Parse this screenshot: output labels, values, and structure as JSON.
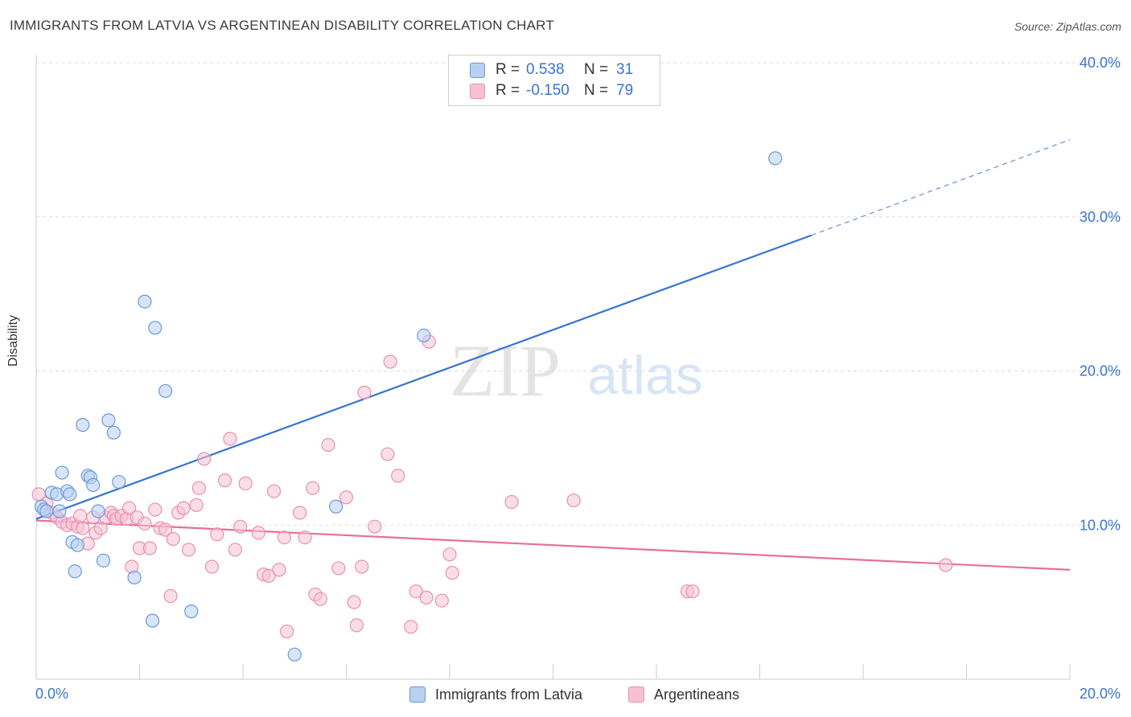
{
  "header": {
    "title": "IMMIGRANTS FROM LATVIA VS ARGENTINEAN DISABILITY CORRELATION CHART",
    "source": "Source: ZipAtlas.com"
  },
  "colors": {
    "blue": "#3a74d0",
    "blue_fill": "#b8d0f2",
    "blue_stroke": "#6b9ad8",
    "pink": "#e86f9a",
    "pink_fill": "#f6c2d3",
    "pink_stroke": "#e98fb0",
    "grid": "#dddddd",
    "tick_label": "#3a74d0"
  },
  "legend": {
    "rows": [
      {
        "r_label": "R =",
        "r_value": "0.538",
        "n_label": "N =",
        "n_value": "31"
      },
      {
        "r_label": "R =",
        "r_value": "-0.150",
        "n_label": "N =",
        "n_value": "79"
      }
    ]
  },
  "watermark": {
    "zip": "ZIP",
    "atlas": "atlas"
  },
  "chart_data": {
    "type": "scatter",
    "title": "IMMIGRANTS FROM LATVIA VS ARGENTINEAN DISABILITY CORRELATION CHART",
    "xlabel": "",
    "ylabel": "Disability",
    "xlim": [
      0,
      20
    ],
    "ylim": [
      0,
      40
    ],
    "x_ticks": [
      0,
      2,
      4,
      6,
      8,
      10,
      12,
      14,
      16,
      18,
      20
    ],
    "x_tick_labels": {
      "0": "0.0%",
      "20": "20.0%"
    },
    "y_ticks": [
      10,
      20,
      30,
      40
    ],
    "y_tick_labels": [
      "10.0%",
      "20.0%",
      "30.0%",
      "40.0%"
    ],
    "grid": true,
    "legend_position": "top-center",
    "series": [
      {
        "name": "Immigrants from Latvia",
        "color": "#3a74d0",
        "r": 0.538,
        "n": 31,
        "trend": {
          "x0": 0.0,
          "y0": 10.4,
          "x1": 15.0,
          "y1": 28.8,
          "dashed_to_x": 20.0,
          "dashed_to_y": 35.0
        },
        "points": [
          [
            0.1,
            11.2
          ],
          [
            0.15,
            11.0
          ],
          [
            0.2,
            10.9
          ],
          [
            0.3,
            12.1
          ],
          [
            0.4,
            12.0
          ],
          [
            0.45,
            10.9
          ],
          [
            0.5,
            13.4
          ],
          [
            0.6,
            12.2
          ],
          [
            0.65,
            12.0
          ],
          [
            0.7,
            8.9
          ],
          [
            0.75,
            7.0
          ],
          [
            0.8,
            8.7
          ],
          [
            0.9,
            16.5
          ],
          [
            1.0,
            13.2
          ],
          [
            1.05,
            13.1
          ],
          [
            1.1,
            12.6
          ],
          [
            1.2,
            10.9
          ],
          [
            1.3,
            7.7
          ],
          [
            1.4,
            16.8
          ],
          [
            1.5,
            16.0
          ],
          [
            1.6,
            12.8
          ],
          [
            1.9,
            6.6
          ],
          [
            2.1,
            24.5
          ],
          [
            2.3,
            22.8
          ],
          [
            2.25,
            3.8
          ],
          [
            2.5,
            18.7
          ],
          [
            3.0,
            4.4
          ],
          [
            5.0,
            1.6
          ],
          [
            5.8,
            11.2
          ],
          [
            7.5,
            22.3
          ],
          [
            14.3,
            33.8
          ]
        ]
      },
      {
        "name": "Argentineans",
        "color": "#e86f9a",
        "r": -0.15,
        "n": 79,
        "trend": {
          "x0": 0.0,
          "y0": 10.3,
          "x1": 20.0,
          "y1": 7.1
        },
        "points": [
          [
            0.05,
            12.0
          ],
          [
            0.2,
            11.4
          ],
          [
            0.3,
            10.8
          ],
          [
            0.4,
            10.5
          ],
          [
            0.5,
            10.2
          ],
          [
            0.6,
            10.0
          ],
          [
            0.7,
            10.1
          ],
          [
            0.8,
            9.9
          ],
          [
            0.85,
            10.6
          ],
          [
            0.9,
            9.8
          ],
          [
            1.0,
            8.8
          ],
          [
            1.1,
            10.5
          ],
          [
            1.15,
            9.5
          ],
          [
            1.25,
            9.8
          ],
          [
            1.35,
            10.5
          ],
          [
            1.45,
            10.8
          ],
          [
            1.5,
            10.6
          ],
          [
            1.55,
            10.4
          ],
          [
            1.65,
            10.6
          ],
          [
            1.75,
            10.4
          ],
          [
            1.8,
            11.1
          ],
          [
            1.85,
            7.3
          ],
          [
            1.95,
            10.5
          ],
          [
            2.0,
            8.5
          ],
          [
            2.1,
            10.1
          ],
          [
            2.2,
            8.5
          ],
          [
            2.3,
            11.0
          ],
          [
            2.4,
            9.8
          ],
          [
            2.5,
            9.7
          ],
          [
            2.6,
            5.4
          ],
          [
            2.65,
            9.1
          ],
          [
            2.75,
            10.8
          ],
          [
            2.85,
            11.1
          ],
          [
            2.95,
            8.4
          ],
          [
            3.1,
            11.3
          ],
          [
            3.15,
            12.4
          ],
          [
            3.25,
            14.3
          ],
          [
            3.4,
            7.3
          ],
          [
            3.5,
            9.4
          ],
          [
            3.65,
            12.9
          ],
          [
            3.75,
            15.6
          ],
          [
            3.85,
            8.4
          ],
          [
            3.95,
            9.9
          ],
          [
            4.05,
            12.7
          ],
          [
            4.3,
            9.5
          ],
          [
            4.4,
            6.8
          ],
          [
            4.5,
            6.7
          ],
          [
            4.6,
            12.2
          ],
          [
            4.7,
            7.1
          ],
          [
            4.8,
            9.2
          ],
          [
            4.85,
            3.1
          ],
          [
            5.1,
            10.8
          ],
          [
            5.2,
            9.2
          ],
          [
            5.35,
            12.4
          ],
          [
            5.4,
            5.5
          ],
          [
            5.5,
            5.2
          ],
          [
            5.65,
            15.2
          ],
          [
            5.85,
            7.2
          ],
          [
            6.0,
            11.8
          ],
          [
            6.15,
            5.0
          ],
          [
            6.2,
            3.5
          ],
          [
            6.3,
            7.3
          ],
          [
            6.35,
            18.6
          ],
          [
            6.55,
            9.9
          ],
          [
            6.8,
            14.6
          ],
          [
            6.85,
            20.6
          ],
          [
            7.0,
            13.2
          ],
          [
            7.25,
            3.4
          ],
          [
            7.35,
            5.7
          ],
          [
            7.55,
            5.3
          ],
          [
            7.6,
            21.9
          ],
          [
            7.85,
            5.1
          ],
          [
            8.0,
            8.1
          ],
          [
            8.05,
            6.9
          ],
          [
            9.2,
            11.5
          ],
          [
            10.4,
            11.6
          ],
          [
            12.6,
            5.7
          ],
          [
            12.7,
            5.7
          ],
          [
            17.6,
            7.4
          ]
        ]
      }
    ]
  }
}
